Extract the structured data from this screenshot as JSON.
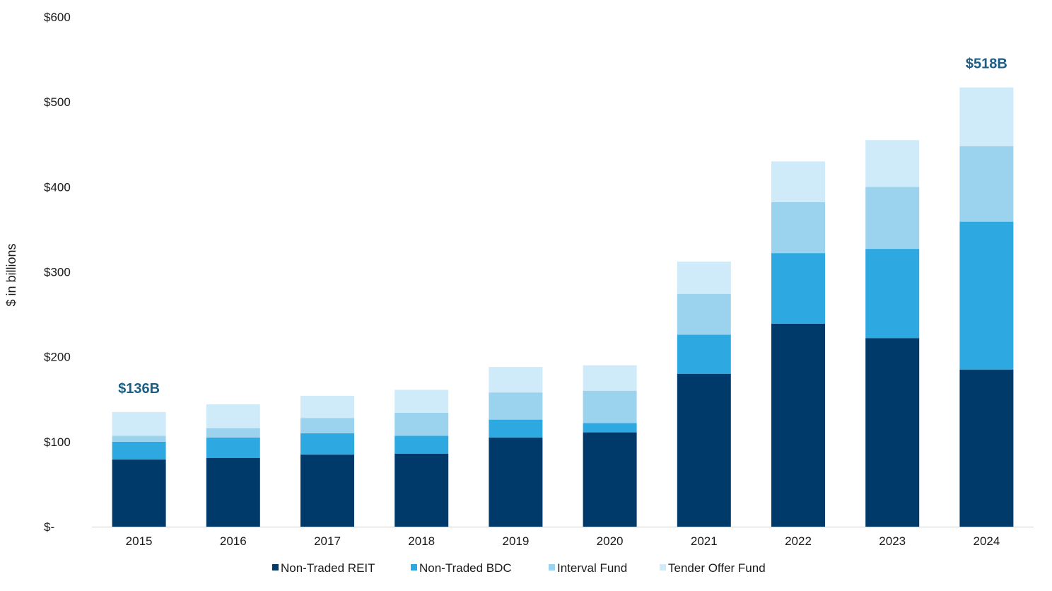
{
  "chart_data": {
    "type": "bar",
    "stacked": true,
    "title": "",
    "xlabel": "",
    "ylabel": "$ in billions",
    "ylim": [
      0,
      600
    ],
    "yticks": [
      0,
      100,
      200,
      300,
      400,
      500,
      600
    ],
    "ytick_labels": [
      "$-",
      "$100",
      "$200",
      "$300",
      "$400",
      "$500",
      "$600"
    ],
    "grid": false,
    "legend_position": "bottom",
    "categories": [
      "2015",
      "2016",
      "2017",
      "2018",
      "2019",
      "2020",
      "2021",
      "2022",
      "2023",
      "2024"
    ],
    "series": [
      {
        "name": "Non-Traded REIT",
        "color": "#003a6b",
        "values": [
          79,
          81,
          85,
          86,
          105,
          111,
          180,
          239,
          222,
          185
        ]
      },
      {
        "name": "Non-Traded BDC",
        "color": "#2ea8e0",
        "values": [
          21,
          24,
          25,
          21,
          21,
          11,
          46,
          83,
          105,
          174
        ]
      },
      {
        "name": "Interval Fund",
        "color": "#9bd3ef",
        "values": [
          7,
          11,
          18,
          27,
          32,
          38,
          48,
          60,
          73,
          89
        ]
      },
      {
        "name": "Tender Offer Fund",
        "color": "#cfeaf8",
        "values": [
          28,
          28,
          26,
          27,
          30,
          30,
          38,
          48,
          55,
          69
        ]
      }
    ],
    "annotations": [
      {
        "category": "2015",
        "text": "$136B",
        "color": "#1b5e86"
      },
      {
        "category": "2024",
        "text": "$518B",
        "color": "#1b5e86"
      }
    ]
  }
}
